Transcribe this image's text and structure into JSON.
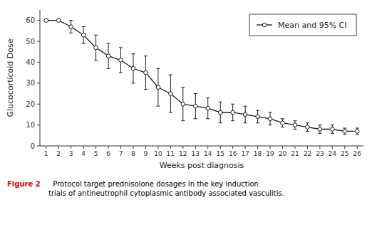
{
  "chart_data": {
    "type": "line",
    "x": [
      1,
      2,
      3,
      4,
      5,
      6,
      7,
      8,
      9,
      10,
      11,
      12,
      13,
      14,
      15,
      16,
      17,
      18,
      19,
      20,
      21,
      22,
      23,
      24,
      25,
      26
    ],
    "series": [
      {
        "name": "Mean and 95% CI",
        "color": "#1a1a1a",
        "marker": "circle",
        "line_style": "solid",
        "values": [
          60,
          60,
          57,
          53,
          47,
          43,
          41,
          37,
          35,
          28,
          25,
          20,
          19,
          18,
          16,
          16,
          15,
          14,
          13,
          11,
          10,
          9,
          8,
          8,
          7,
          7
        ],
        "error_low": [
          0.5,
          0.5,
          3,
          4,
          6,
          6,
          6,
          7,
          8,
          9,
          9,
          8,
          6,
          5,
          5,
          4,
          4,
          3,
          3,
          2,
          2,
          2,
          2,
          2,
          1.5,
          1.5
        ],
        "error_high": [
          0.5,
          0.5,
          3,
          4,
          6,
          6,
          6,
          7,
          8,
          9,
          9,
          8,
          6,
          5,
          5,
          4,
          4,
          3,
          3,
          2,
          2,
          2,
          2,
          2,
          1.5,
          1.5
        ]
      }
    ],
    "x_label": "Weeks post diagnosis",
    "y_label": "Glucocorticoid Dose",
    "xlim": [
      0.5,
      26.5
    ],
    "xticks": [
      1,
      2,
      3,
      4,
      5,
      6,
      7,
      8,
      9,
      10,
      11,
      12,
      13,
      14,
      15,
      16,
      17,
      18,
      19,
      20,
      21,
      22,
      23,
      24,
      25,
      26
    ],
    "ylim": [
      0,
      65
    ],
    "yticks": [
      0,
      10,
      20,
      30,
      40,
      50,
      60
    ],
    "grid": false,
    "legend": "upper right",
    "annotations": [
      {
        "text": "Figure 2",
        "color": "#e8000d"
      },
      {
        "text": "  Protocol target prednisolone dosages in the key induction\ntrials of antineutrophil cytoplasmic antibody associated vasculitis.",
        "color": "#000000"
      }
    ]
  }
}
